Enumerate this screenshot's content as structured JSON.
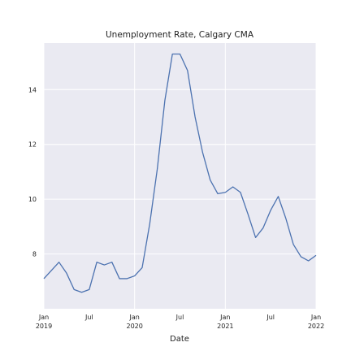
{
  "chart_data": {
    "type": "line",
    "title": "Unemployment Rate, Calgary CMA",
    "xlabel": "Date",
    "ylabel": "",
    "grid": true,
    "ylim": [
      6.0,
      15.7
    ],
    "xlim": [
      "2019-01",
      "2022-01"
    ],
    "x_ticks": [
      {
        "date": "2019-01",
        "label": [
          "Jan",
          "2019"
        ]
      },
      {
        "date": "2019-07",
        "label": [
          "Jul"
        ]
      },
      {
        "date": "2020-01",
        "label": [
          "Jan",
          "2020"
        ]
      },
      {
        "date": "2020-07",
        "label": [
          "Jul"
        ]
      },
      {
        "date": "2021-01",
        "label": [
          "Jan",
          "2021"
        ]
      },
      {
        "date": "2021-07",
        "label": [
          "Jul"
        ]
      },
      {
        "date": "2022-01",
        "label": [
          "Jan",
          "2022"
        ]
      }
    ],
    "y_ticks": [
      8,
      10,
      12,
      14
    ],
    "line_color": "#4c72b0",
    "background_color": "#eaeaf2",
    "series": [
      {
        "x": [
          "2019-01",
          "2019-02",
          "2019-03",
          "2019-04",
          "2019-05",
          "2019-06",
          "2019-07",
          "2019-08",
          "2019-09",
          "2019-10",
          "2019-11",
          "2019-12",
          "2020-01",
          "2020-02",
          "2020-03",
          "2020-04",
          "2020-05",
          "2020-06",
          "2020-07",
          "2020-08",
          "2020-09",
          "2020-10",
          "2020-11",
          "2020-12",
          "2021-01",
          "2021-02",
          "2021-03",
          "2021-04",
          "2021-05",
          "2021-06",
          "2021-07",
          "2021-08",
          "2021-09",
          "2021-10",
          "2021-11",
          "2021-12",
          "2022-01"
        ],
        "values": [
          7.1,
          7.4,
          7.7,
          7.3,
          6.7,
          6.6,
          6.7,
          7.7,
          7.6,
          7.7,
          7.1,
          7.1,
          7.2,
          7.5,
          9.1,
          11.1,
          13.6,
          15.3,
          15.3,
          14.7,
          13.0,
          11.7,
          10.7,
          10.2,
          10.25,
          10.45,
          10.25,
          9.45,
          8.6,
          8.95,
          9.6,
          10.1,
          9.3,
          8.35,
          7.9,
          7.75,
          7.95
        ]
      }
    ]
  }
}
